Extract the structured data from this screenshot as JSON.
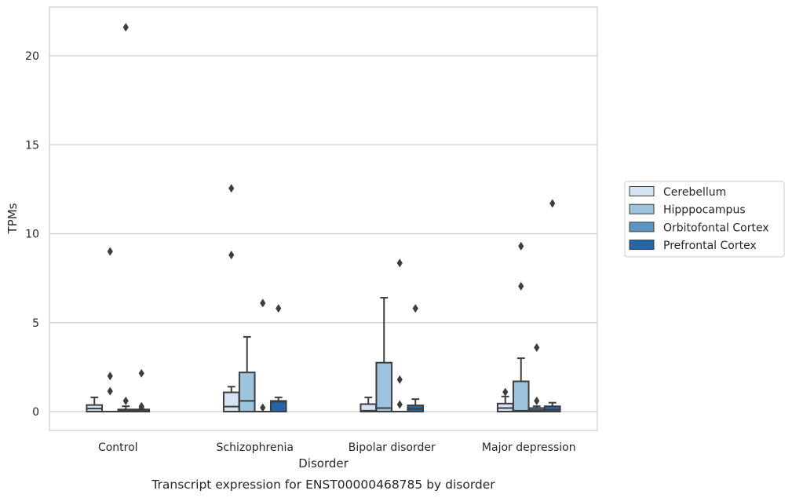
{
  "chart_data": {
    "type": "box",
    "caption": "Transcript expression for ENST00000468785 by disorder",
    "xlabel": "Disorder",
    "ylabel": "TPMs",
    "ylim": [
      -1.05,
      22.8
    ],
    "yticks": [
      0,
      5,
      10,
      15,
      20
    ],
    "grid": "horizontal",
    "legend_position": "right",
    "categories": [
      "Control",
      "Schizophrenia",
      "Bipolar disorder",
      "Major depression"
    ],
    "series": [
      {
        "name": "Cerebellum",
        "color": "#d3e3f2",
        "boxes": [
          {
            "q1": 0,
            "median": 0.17,
            "q3": 0.37,
            "whisker_low": 0,
            "whisker_high": 0.8,
            "outliers": []
          },
          {
            "q1": 0,
            "median": 0.28,
            "q3": 1.08,
            "whisker_low": 0,
            "whisker_high": 1.4,
            "outliers": [
              12.55,
              8.8
            ]
          },
          {
            "q1": 0,
            "median": 0.05,
            "q3": 0.42,
            "whisker_low": 0,
            "whisker_high": 0.8,
            "outliers": []
          },
          {
            "q1": 0,
            "median": 0.2,
            "q3": 0.45,
            "whisker_low": 0,
            "whisker_high": 0.85,
            "outliers": [
              1.1
            ]
          }
        ]
      },
      {
        "name": "Hipppocampus",
        "color": "#9cc4de",
        "boxes": [
          {
            "q1": 0,
            "median": 0,
            "q3": 0,
            "whisker_low": 0,
            "whisker_high": 0,
            "outliers": [
              9.0,
              2.0,
              1.15
            ]
          },
          {
            "q1": 0,
            "median": 0.6,
            "q3": 2.2,
            "whisker_low": 0,
            "whisker_high": 4.2,
            "outliers": []
          },
          {
            "q1": 0,
            "median": 0.2,
            "q3": 2.75,
            "whisker_low": 0,
            "whisker_high": 6.4,
            "outliers": []
          },
          {
            "q1": 0,
            "median": 0.05,
            "q3": 1.7,
            "whisker_low": 0,
            "whisker_high": 3.0,
            "outliers": [
              9.3,
              7.05
            ]
          }
        ]
      },
      {
        "name": "Orbitofontal Cortex",
        "color": "#5a94c2",
        "boxes": [
          {
            "q1": 0,
            "median": 0.05,
            "q3": 0.12,
            "whisker_low": 0,
            "whisker_high": 0.3,
            "outliers": [
              21.6,
              0.6
            ]
          },
          {
            "q1": 0,
            "median": 0,
            "q3": 0,
            "whisker_low": 0,
            "whisker_high": 0,
            "outliers": [
              6.1,
              0.22
            ]
          },
          {
            "q1": 0,
            "median": 0,
            "q3": 0,
            "whisker_low": 0,
            "whisker_high": 0,
            "outliers": [
              8.35,
              1.8,
              0.4
            ]
          },
          {
            "q1": 0,
            "median": 0.08,
            "q3": 0.2,
            "whisker_low": 0,
            "whisker_high": 0.3,
            "outliers": [
              3.6,
              0.6
            ]
          }
        ]
      },
      {
        "name": "Prefrontal Cortex",
        "color": "#2466a8",
        "boxes": [
          {
            "q1": 0,
            "median": 0.05,
            "q3": 0.12,
            "whisker_low": 0,
            "whisker_high": 0.12,
            "outliers": [
              2.15,
              0.3,
              0.22
            ]
          },
          {
            "q1": 0,
            "median": 0.55,
            "q3": 0.6,
            "whisker_low": 0,
            "whisker_high": 0.8,
            "outliers": [
              5.8
            ]
          },
          {
            "q1": 0,
            "median": 0.15,
            "q3": 0.35,
            "whisker_low": 0,
            "whisker_high": 0.7,
            "outliers": [
              5.8
            ]
          },
          {
            "q1": 0,
            "median": 0.1,
            "q3": 0.3,
            "whisker_low": 0,
            "whisker_high": 0.5,
            "outliers": [
              11.7
            ]
          }
        ]
      }
    ]
  }
}
